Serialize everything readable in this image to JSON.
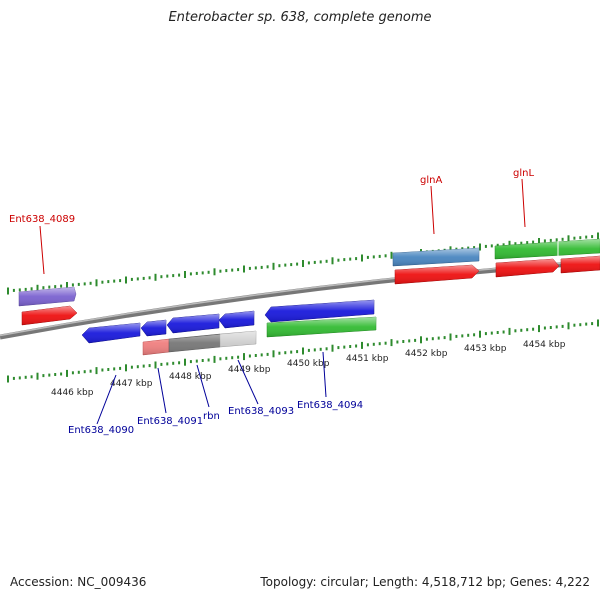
{
  "title": "Enterobacter sp. 638, complete genome",
  "footer": {
    "accession": "Accession: NC_009436",
    "summary": "Topology: circular; Length: 4,518,712 bp; Genes: 4,222"
  },
  "ruler": {
    "unit": "kbp",
    "labels": [
      "4446 kbp",
      "4447 kbp",
      "4448 kbp",
      "4449 kbp",
      "4450 kbp",
      "4451 kbp",
      "4452 kbp",
      "4453 kbp",
      "4454 kbp"
    ]
  },
  "genes": [
    {
      "name": "Ent638_4089",
      "strand": "+",
      "color": "#cc0000"
    },
    {
      "name": "glnA",
      "strand": "+",
      "color": "#cc0000"
    },
    {
      "name": "glnL",
      "strand": "+",
      "color": "#cc0000"
    },
    {
      "name": "Ent638_4090",
      "strand": "-",
      "color": "#000099"
    },
    {
      "name": "Ent638_4091",
      "strand": "-",
      "color": "#000099"
    },
    {
      "name": "rbn",
      "strand": "-",
      "color": "#000099"
    },
    {
      "name": "Ent638_4093",
      "strand": "-",
      "color": "#000099"
    },
    {
      "name": "Ent638_4094",
      "strand": "-",
      "color": "#000099"
    }
  ],
  "colors": {
    "backbone": "#888888",
    "tick": "#2e8b2e",
    "cds": "#ee1111",
    "minus_cds": "#1a1adc",
    "feature_green": "#33bb33",
    "feature_steelblue": "#4a86c0",
    "feature_purple": "#7b62d0",
    "feature_grey": "#777777",
    "feature_pink": "#f08080",
    "feature_lightgrey": "#cccccc"
  }
}
